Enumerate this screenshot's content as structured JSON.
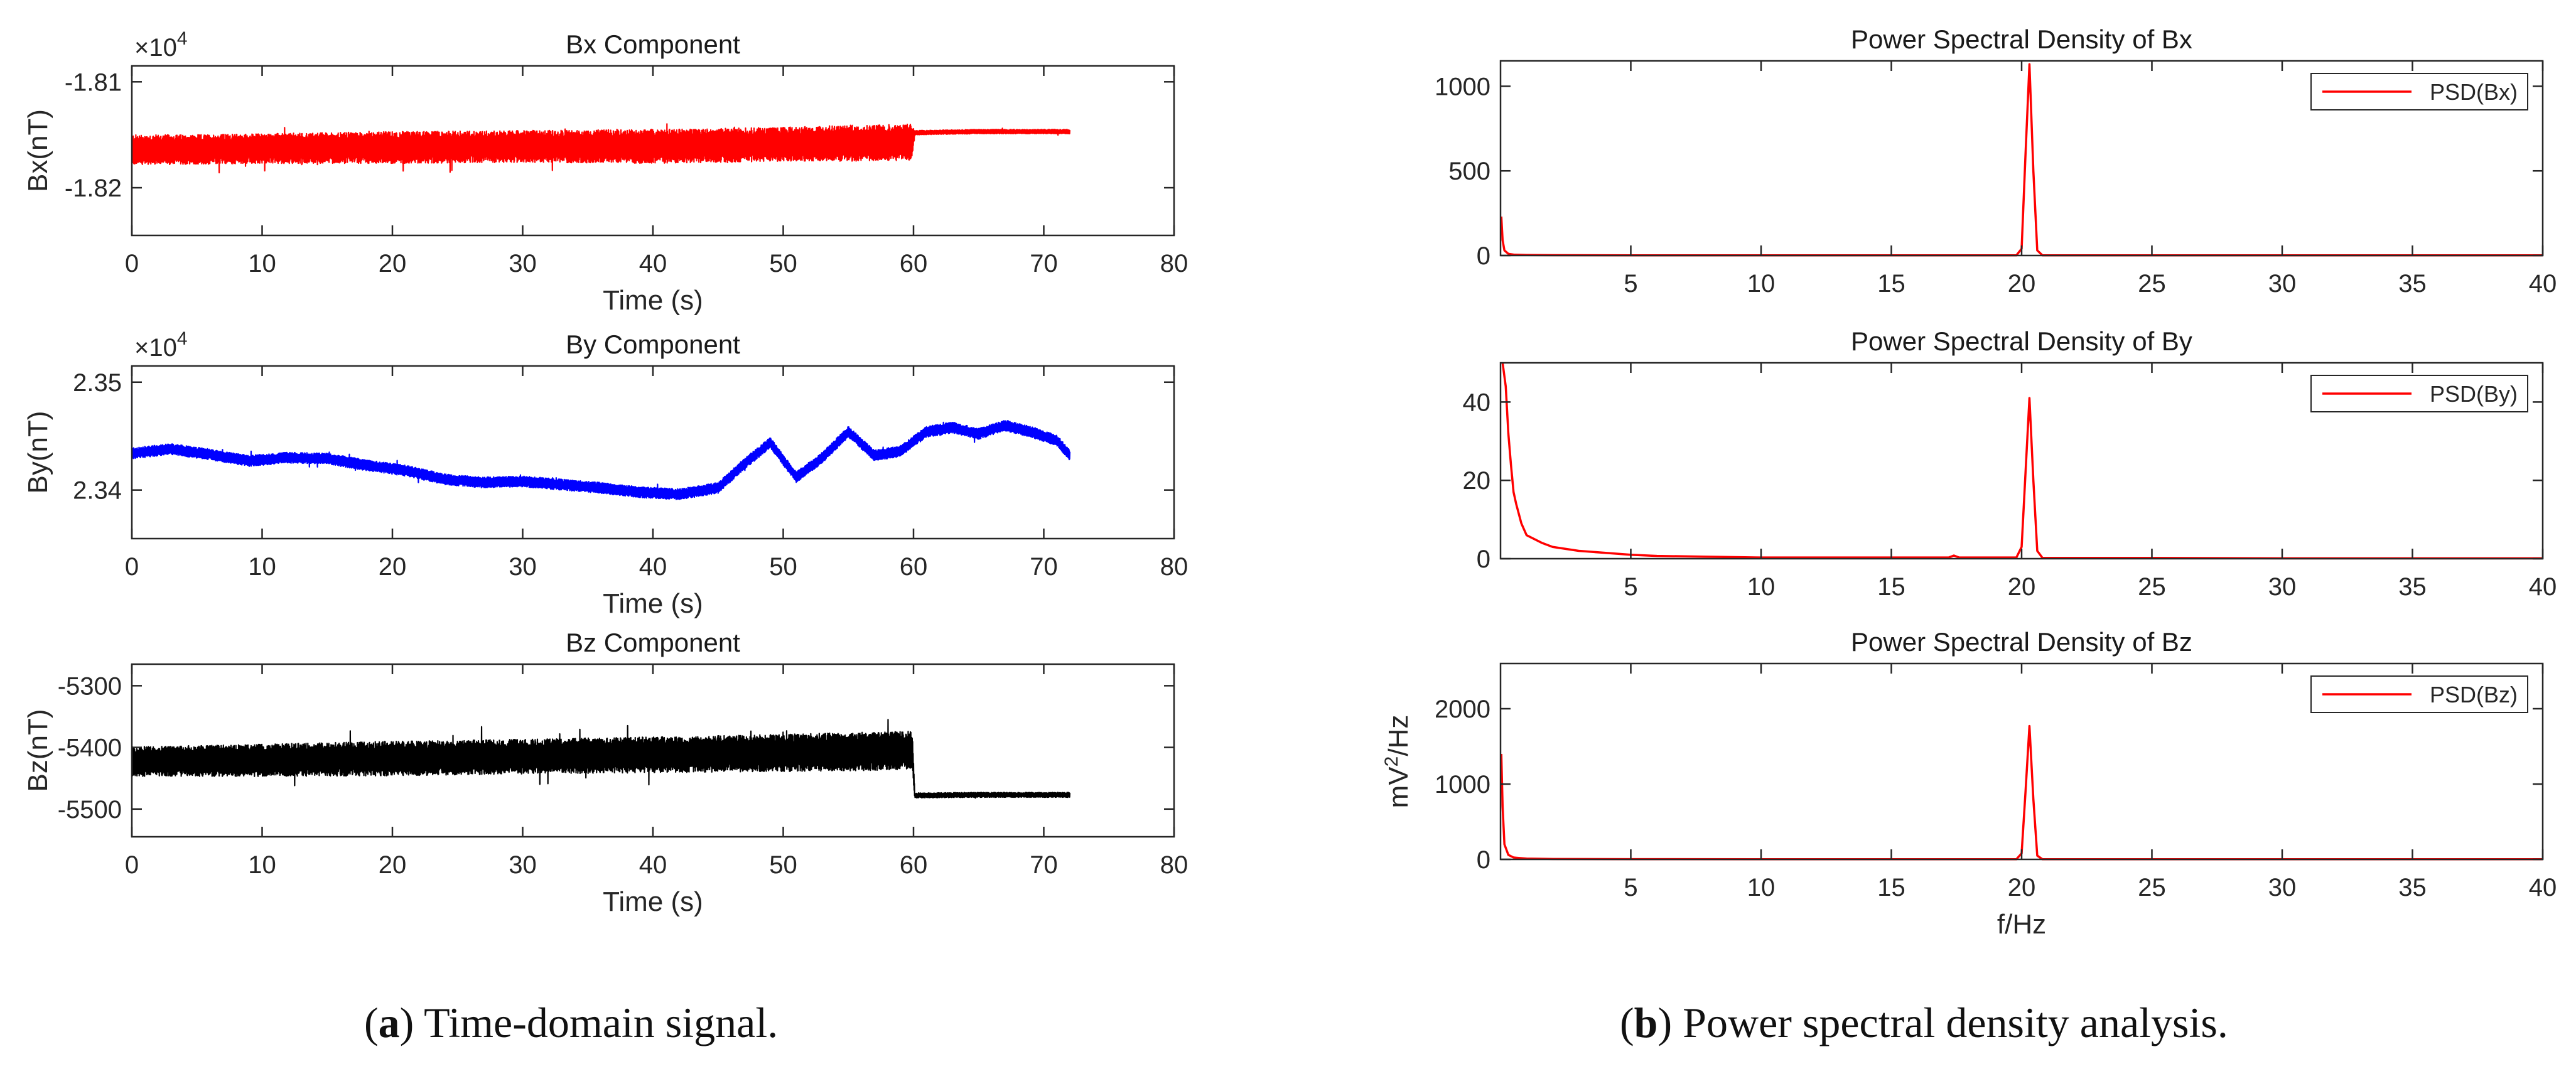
{
  "chart_data": [
    {
      "type": "line",
      "title": "Bx Component",
      "xlabel": "Time (s)",
      "ylabel": "Bx(nT)",
      "exponent_label": "×10",
      "exponent_power": "4",
      "xlim": [
        0,
        80
      ],
      "ylim": [
        -1.8245,
        -1.8085
      ],
      "xticks": [
        "0",
        "10",
        "20",
        "30",
        "40",
        "50",
        "60",
        "70",
        "80"
      ],
      "yticks": [
        {
          "value": -1.81,
          "label": "-1.81"
        },
        {
          "value": -1.82,
          "label": "-1.82"
        }
      ],
      "series": [
        {
          "color": "#ff0000",
          "pattern": "noise_band",
          "t": [
            0,
            5,
            10,
            20,
            30,
            40,
            50,
            55,
            59.9,
            60.1,
            65,
            70,
            72
          ],
          "center": [
            -1.8164,
            -1.8164,
            -1.8163,
            -1.8162,
            -1.8161,
            -1.8161,
            -1.8159,
            -1.8158,
            -1.8157,
            -1.8148,
            -1.8147,
            -1.8147,
            -1.8147
          ],
          "half_width": [
            0.0014,
            0.0014,
            0.0014,
            0.0015,
            0.0015,
            0.0016,
            0.0016,
            0.0017,
            0.0017,
            0.0002,
            0.0002,
            0.0002,
            0.0002
          ]
        }
      ]
    },
    {
      "type": "line",
      "title": "By Component",
      "xlabel": "Time (s)",
      "ylabel": "By(nT)",
      "exponent_label": "×10",
      "exponent_power": "4",
      "xlim": [
        0,
        80
      ],
      "ylim": [
        2.3355,
        2.3515
      ],
      "xticks": [
        "0",
        "10",
        "20",
        "30",
        "40",
        "50",
        "60",
        "70",
        "80"
      ],
      "yticks": [
        {
          "value": 2.35,
          "label": "2.35"
        },
        {
          "value": 2.34,
          "label": "2.34"
        }
      ],
      "series": [
        {
          "color": "#0000ff",
          "pattern": "noise_band",
          "t": [
            0,
            3,
            6,
            9,
            12,
            15,
            18,
            21,
            24,
            27,
            30,
            33,
            36,
            39,
            42,
            45,
            47,
            49,
            51,
            53,
            55,
            57,
            59,
            61,
            63,
            65,
            67,
            69,
            71,
            72
          ],
          "center": [
            2.3434,
            2.3438,
            2.3433,
            2.3427,
            2.343,
            2.3429,
            2.3423,
            2.3418,
            2.341,
            2.3407,
            2.3408,
            2.3405,
            2.3402,
            2.3398,
            2.3396,
            2.3402,
            2.3424,
            2.3444,
            2.3412,
            2.343,
            2.3454,
            2.3432,
            2.3436,
            2.3454,
            2.3458,
            2.3452,
            2.346,
            2.3454,
            2.3446,
            2.3432
          ],
          "half_width": [
            0.0005,
            0.0005,
            0.0005,
            0.0005,
            0.0005,
            0.0005,
            0.0005,
            0.0005,
            0.0005,
            0.0005,
            0.0005,
            0.0005,
            0.0005,
            0.0005,
            0.0005,
            0.0005,
            0.0005,
            0.0005,
            0.0005,
            0.0005,
            0.0005,
            0.0005,
            0.0005,
            0.0005,
            0.0005,
            0.0005,
            0.0005,
            0.0005,
            0.0005,
            0.0005
          ]
        }
      ]
    },
    {
      "type": "line",
      "title": "Bz Component",
      "xlabel": "Time (s)",
      "ylabel": "Bz(nT)",
      "xlim": [
        0,
        80
      ],
      "ylim": [
        -5545,
        -5265
      ],
      "xticks": [
        "0",
        "10",
        "20",
        "30",
        "40",
        "50",
        "60",
        "70",
        "80"
      ],
      "yticks": [
        {
          "value": -5300,
          "label": "-5300"
        },
        {
          "value": -5400,
          "label": "-5400"
        },
        {
          "value": -5500,
          "label": "-5500"
        }
      ],
      "series": [
        {
          "color": "#000000",
          "pattern": "noise_band",
          "t": [
            0,
            10,
            20,
            30,
            40,
            50,
            55,
            59.9,
            60.1,
            65,
            70,
            72
          ],
          "center": [
            -5423,
            -5421,
            -5418,
            -5415,
            -5412,
            -5409,
            -5407,
            -5405,
            -5478,
            -5477,
            -5477,
            -5477
          ],
          "half_width": [
            24,
            26,
            28,
            28,
            29,
            30,
            31,
            31,
            4,
            4,
            4,
            4
          ]
        }
      ]
    },
    {
      "type": "line",
      "title": "Power Spectral Density of Bx",
      "xlabel": "",
      "ylabel": "",
      "xlim": [
        0,
        40
      ],
      "ylim": [
        0,
        1150
      ],
      "xticks": [
        {
          "value": 5,
          "label": "5"
        },
        {
          "value": 10,
          "label": "10"
        },
        {
          "value": 15,
          "label": "15"
        },
        {
          "value": 20,
          "label": "20"
        },
        {
          "value": 25,
          "label": "25"
        },
        {
          "value": 30,
          "label": "30"
        },
        {
          "value": 35,
          "label": "35"
        },
        {
          "value": 40,
          "label": "40"
        }
      ],
      "yticks": [
        {
          "value": 0,
          "label": "0"
        },
        {
          "value": 500,
          "label": "500"
        },
        {
          "value": 1000,
          "label": "1000"
        }
      ],
      "legend": {
        "label": "PSD(Bx)",
        "position": "top-right"
      },
      "series": [
        {
          "name": "PSD(Bx)",
          "color": "#ff0000",
          "x": [
            0.03,
            0.08,
            0.15,
            0.3,
            0.5,
            1,
            2,
            5,
            10,
            15,
            17.3,
            17.5,
            17.7,
            19.8,
            20.0,
            20.15,
            20.3,
            20.45,
            20.6,
            20.8,
            25,
            30,
            35,
            40
          ],
          "y": [
            230,
            90,
            30,
            10,
            5,
            3,
            2,
            1,
            1,
            1,
            1,
            1,
            1,
            1,
            40,
            600,
            1130,
            500,
            30,
            1,
            1,
            1,
            1,
            1
          ]
        }
      ]
    },
    {
      "type": "line",
      "title": "Power Spectral Density of By",
      "xlabel": "",
      "ylabel": "",
      "xlim": [
        0,
        40
      ],
      "ylim": [
        0,
        50
      ],
      "xticks": [
        {
          "value": 5,
          "label": "5"
        },
        {
          "value": 10,
          "label": "10"
        },
        {
          "value": 15,
          "label": "15"
        },
        {
          "value": 20,
          "label": "20"
        },
        {
          "value": 25,
          "label": "25"
        },
        {
          "value": 30,
          "label": "30"
        },
        {
          "value": 35,
          "label": "35"
        },
        {
          "value": 40,
          "label": "40"
        }
      ],
      "yticks": [
        {
          "value": 0,
          "label": "0"
        },
        {
          "value": 20,
          "label": "20"
        },
        {
          "value": 40,
          "label": "40"
        }
      ],
      "legend": {
        "label": "PSD(By)",
        "position": "top-right"
      },
      "series": [
        {
          "name": "PSD(By)",
          "color": "#ff0000",
          "x": [
            0.08,
            0.2,
            0.3,
            0.4,
            0.5,
            0.6,
            0.8,
            1.0,
            1.3,
            1.6,
            2,
            2.5,
            3,
            4,
            5,
            6,
            8,
            10,
            15,
            17.2,
            17.4,
            17.6,
            19.8,
            20.0,
            20.15,
            20.3,
            20.45,
            20.6,
            20.8,
            25,
            30,
            35,
            40
          ],
          "y": [
            50,
            44,
            32,
            24,
            17,
            14,
            9,
            6,
            5,
            4,
            3,
            2.5,
            2,
            1.5,
            1,
            0.7,
            0.5,
            0.3,
            0.3,
            0.3,
            0.8,
            0.3,
            0.3,
            3,
            22,
            41,
            20,
            2,
            0.2,
            0.2,
            0.1,
            0.1,
            0.1
          ]
        }
      ]
    },
    {
      "type": "line",
      "title": "Power Spectral Density of Bz",
      "xlabel": "f/Hz",
      "ylabel": "mV²/Hz",
      "ylabel_base": "mV",
      "ylabel_power": "2",
      "ylabel_unit": "/Hz",
      "xlim": [
        0,
        40
      ],
      "ylim": [
        0,
        2600
      ],
      "xticks": [
        {
          "value": 5,
          "label": "5"
        },
        {
          "value": 10,
          "label": "10"
        },
        {
          "value": 15,
          "label": "15"
        },
        {
          "value": 20,
          "label": "20"
        },
        {
          "value": 25,
          "label": "25"
        },
        {
          "value": 30,
          "label": "30"
        },
        {
          "value": 35,
          "label": "35"
        },
        {
          "value": 40,
          "label": "40"
        }
      ],
      "yticks": [
        {
          "value": 0,
          "label": "0"
        },
        {
          "value": 1000,
          "label": "1000"
        },
        {
          "value": 2000,
          "label": "2000"
        }
      ],
      "legend": {
        "label": "PSD(Bz)",
        "position": "top-right"
      },
      "series": [
        {
          "name": "PSD(Bz)",
          "color": "#ff0000",
          "x": [
            0.03,
            0.08,
            0.15,
            0.3,
            0.5,
            1,
            2,
            5,
            10,
            15,
            19.8,
            20.0,
            20.15,
            20.3,
            20.45,
            20.6,
            20.8,
            25,
            30,
            35,
            40
          ],
          "y": [
            1400,
            700,
            200,
            60,
            25,
            10,
            5,
            3,
            2,
            2,
            2,
            80,
            900,
            1770,
            800,
            50,
            2,
            2,
            2,
            2,
            2
          ]
        }
      ]
    }
  ],
  "captions": {
    "left": {
      "letter": "a",
      "text": " Time-domain signal."
    },
    "right": {
      "letter": "b",
      "text": " Power spectral density analysis."
    }
  }
}
